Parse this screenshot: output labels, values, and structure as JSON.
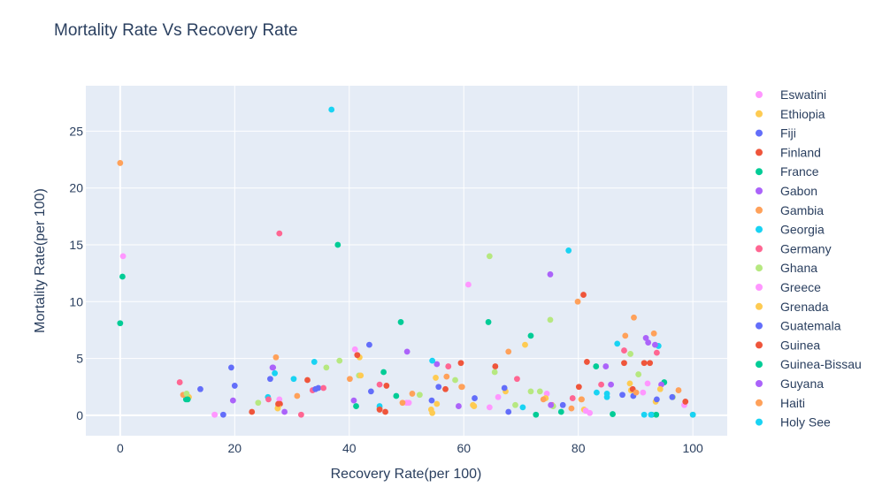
{
  "chart_data": {
    "type": "scatter",
    "title": "Mortality Rate Vs Recovery Rate",
    "xlabel": "Recovery Rate(per 100)",
    "ylabel": "Mortality Rate(per 100)",
    "xlim": [
      -6,
      106
    ],
    "ylim": [
      -1.8,
      29
    ],
    "xticks": [
      0,
      20,
      40,
      60,
      80,
      100
    ],
    "yticks": [
      0,
      5,
      10,
      15,
      20,
      25
    ],
    "grid": true,
    "legend_position": "right",
    "colors": {
      "plot_bg": "#e5ecf6",
      "grid": "#ffffff",
      "title": "#2a3f5f",
      "text": "#2a3f5f",
      "muted_legend": "#a0aab8"
    },
    "series": [
      {
        "name": "Eswatini",
        "color": "#ff97ff",
        "hidden": false,
        "points": [
          [
            16.5,
            0.05
          ],
          [
            27.8,
            1.4
          ],
          [
            41,
            5.8
          ],
          [
            50,
            1.1
          ],
          [
            60.8,
            11.5
          ],
          [
            64.5,
            0.7
          ],
          [
            82,
            0.2
          ],
          [
            98.5,
            0.9
          ],
          [
            0.5,
            14
          ]
        ]
      },
      {
        "name": "Ethiopia",
        "color": "#fecb52",
        "hidden": false,
        "points": [
          [
            12,
            1.6
          ],
          [
            27.5,
            0.6
          ],
          [
            41.8,
            5.1
          ],
          [
            54.5,
            0.2
          ],
          [
            55.3,
            1
          ],
          [
            61.8,
            0.8
          ],
          [
            70.7,
            6.2
          ],
          [
            81,
            0.5
          ],
          [
            89,
            2.8
          ],
          [
            93.5,
            1.2
          ]
        ]
      },
      {
        "name": "Fiji",
        "color": "#636efa",
        "hidden": false,
        "points": [
          [
            18,
            0.05
          ],
          [
            19.4,
            4.2
          ],
          [
            26.2,
            3.2
          ],
          [
            34.6,
            2.4
          ],
          [
            43.5,
            6.2
          ],
          [
            54.4,
            1.3
          ],
          [
            61.9,
            1.5
          ],
          [
            67.8,
            0.3
          ],
          [
            87.7,
            1.8
          ],
          [
            93.7,
            1.4
          ]
        ]
      },
      {
        "name": "Finland",
        "color": "#ef553b",
        "hidden": false,
        "points": [
          [
            23,
            0.3
          ],
          [
            27.9,
            1
          ],
          [
            32.7,
            3.1
          ],
          [
            46.5,
            2.6
          ],
          [
            59.5,
            4.6
          ],
          [
            65.5,
            4.3
          ],
          [
            81.5,
            4.7
          ],
          [
            88,
            4.6
          ],
          [
            91.5,
            4.6
          ],
          [
            98.7,
            1.2
          ]
        ]
      },
      {
        "name": "France",
        "color": "#00cc96",
        "hidden": false,
        "points": [
          [
            0,
            8.1
          ],
          [
            0.4,
            12.2
          ],
          [
            11.5,
            1.4
          ],
          [
            38,
            15
          ],
          [
            46,
            3.8
          ],
          [
            49,
            8.2
          ],
          [
            64.3,
            8.2
          ],
          [
            71.7,
            7
          ],
          [
            83.1,
            4.3
          ],
          [
            86,
            0.1
          ],
          [
            95,
            2.9
          ],
          [
            72.6,
            0.05
          ]
        ]
      },
      {
        "name": "Gabon",
        "color": "#ab63fa",
        "hidden": false,
        "points": [
          [
            26.7,
            4.2
          ],
          [
            28.7,
            0.3
          ],
          [
            50.1,
            5.6
          ],
          [
            55.3,
            4.5
          ],
          [
            75.1,
            12.4
          ],
          [
            84.8,
            4.3
          ],
          [
            91.8,
            6.8
          ],
          [
            94.5,
            2.7
          ]
        ]
      },
      {
        "name": "Gambia",
        "color": "#ffa15a",
        "hidden": false,
        "points": [
          [
            0,
            22.2
          ],
          [
            11,
            1.8
          ],
          [
            27.2,
            5.1
          ],
          [
            30.9,
            1.7
          ],
          [
            40.1,
            3.2
          ],
          [
            45.3,
            0.6
          ],
          [
            51,
            1.9
          ],
          [
            57,
            3.4
          ],
          [
            59.7,
            2.5
          ],
          [
            67.8,
            5.6
          ],
          [
            79.9,
            10
          ],
          [
            88.2,
            7
          ],
          [
            89.7,
            8.6
          ],
          [
            93.2,
            7.2
          ],
          [
            97.5,
            2.2
          ]
        ]
      },
      {
        "name": "Georgia",
        "color": "#19d3f3",
        "hidden": false,
        "points": [
          [
            25.8,
            1.6
          ],
          [
            27,
            3.7
          ],
          [
            30.3,
            3.2
          ],
          [
            33.9,
            4.7
          ],
          [
            36.9,
            26.9
          ],
          [
            45.3,
            0.8
          ],
          [
            54.5,
            4.8
          ],
          [
            70.3,
            0.7
          ],
          [
            78.3,
            14.5
          ],
          [
            83.2,
            2.0
          ],
          [
            85,
            1.6
          ],
          [
            86.8,
            6.3
          ],
          [
            91.5,
            0.05
          ],
          [
            94,
            6.1
          ]
        ]
      },
      {
        "name": "Germany",
        "color": "#ff6692",
        "hidden": false,
        "points": [
          [
            10.4,
            2.9
          ],
          [
            25.9,
            1.4
          ],
          [
            27.8,
            16
          ],
          [
            31.6,
            0.05
          ],
          [
            33.6,
            2.2
          ],
          [
            35.5,
            2.4
          ],
          [
            45.3,
            2.7
          ],
          [
            57.3,
            4.3
          ],
          [
            69.3,
            3.2
          ],
          [
            75.4,
            0.9
          ],
          [
            79,
            1.5
          ],
          [
            84,
            2.7
          ],
          [
            88,
            5.7
          ],
          [
            93.7,
            5.5
          ]
        ]
      },
      {
        "name": "Ghana",
        "color": "#b6e880",
        "hidden": false,
        "points": [
          [
            11.6,
            1.9
          ],
          [
            24.1,
            1.1
          ],
          [
            36,
            4.2
          ],
          [
            38.3,
            4.8
          ],
          [
            41.7,
            3.5
          ],
          [
            52.3,
            1.8
          ],
          [
            58.5,
            3.1
          ],
          [
            64.5,
            14
          ],
          [
            65.4,
            3.8
          ],
          [
            69,
            0.9
          ],
          [
            71.7,
            2.1
          ],
          [
            73.3,
            2.1
          ],
          [
            75.1,
            8.4
          ],
          [
            75.6,
            0.8
          ],
          [
            89.1,
            5.4
          ],
          [
            90.5,
            3.6
          ],
          [
            96.5,
            1.6
          ]
        ]
      },
      {
        "name": "Greece",
        "color": "#ff97ff",
        "hidden": false,
        "points": [
          [
            16.5,
            0.05
          ],
          [
            50.4,
            1.1
          ],
          [
            66,
            1.6
          ],
          [
            74.5,
            1.9
          ],
          [
            81.3,
            0.4
          ],
          [
            91.3,
            2
          ],
          [
            92.1,
            2.8
          ]
        ]
      },
      {
        "name": "Grenada",
        "color": "#fecb52",
        "hidden": false,
        "points": [
          [
            27.6,
            0.8
          ],
          [
            42,
            3.5
          ],
          [
            54.3,
            0.5
          ],
          [
            55.1,
            3.3
          ],
          [
            61.6,
            0.9
          ],
          [
            67.3,
            2.1
          ],
          [
            74.3,
            1.5
          ],
          [
            80.5,
            1.4
          ],
          [
            89.2,
            2.2
          ],
          [
            94.3,
            2.3
          ]
        ]
      },
      {
        "name": "Guatemala",
        "color": "#636efa",
        "hidden": false,
        "points": [
          [
            14,
            2.3
          ],
          [
            20,
            2.6
          ],
          [
            34.1,
            2.3
          ],
          [
            43.8,
            2.1
          ],
          [
            55.6,
            2.5
          ],
          [
            67.1,
            2.4
          ],
          [
            77.3,
            0.9
          ],
          [
            89.6,
            1.7
          ],
          [
            96.4,
            1.6
          ]
        ]
      },
      {
        "name": "Guinea",
        "color": "#ef553b",
        "hidden": false,
        "points": [
          [
            27.6,
            1
          ],
          [
            41.4,
            5.3
          ],
          [
            45.3,
            0.5
          ],
          [
            46.3,
            0.3
          ],
          [
            56.8,
            2.3
          ],
          [
            80.1,
            2.5
          ],
          [
            80.9,
            10.6
          ],
          [
            89.5,
            2.3
          ],
          [
            92.5,
            4.6
          ]
        ]
      },
      {
        "name": "Guinea-Bissau",
        "color": "#00cc96",
        "hidden": false,
        "points": [
          [
            11.8,
            1.4
          ],
          [
            41.2,
            0.8
          ],
          [
            48.2,
            1.7
          ],
          [
            77,
            0.3
          ],
          [
            92.8,
            0.05
          ],
          [
            93.6,
            0.05
          ]
        ]
      },
      {
        "name": "Guyana",
        "color": "#ab63fa",
        "hidden": false,
        "points": [
          [
            19.7,
            1.3
          ],
          [
            26.6,
            4.2
          ],
          [
            40.8,
            1.3
          ],
          [
            59.1,
            0.8
          ],
          [
            75.2,
            0.9
          ],
          [
            85.7,
            2.7
          ],
          [
            92.2,
            6.4
          ],
          [
            93.4,
            6.2
          ]
        ]
      },
      {
        "name": "Haiti",
        "color": "#ffa15a",
        "hidden": false,
        "points": [
          [
            49.3,
            1.1
          ],
          [
            59.6,
            2.5
          ],
          [
            73.9,
            1.4
          ],
          [
            78.8,
            0.6
          ],
          [
            80.6,
            1.4
          ],
          [
            90.1,
            2.0
          ],
          [
            100,
            0.05
          ]
        ]
      },
      {
        "name": "Holy See",
        "color": "#19d3f3",
        "hidden": false,
        "points": [
          [
            85,
            1.9
          ],
          [
            92.7,
            0.05
          ],
          [
            100,
            0.05
          ]
        ]
      }
    ]
  }
}
